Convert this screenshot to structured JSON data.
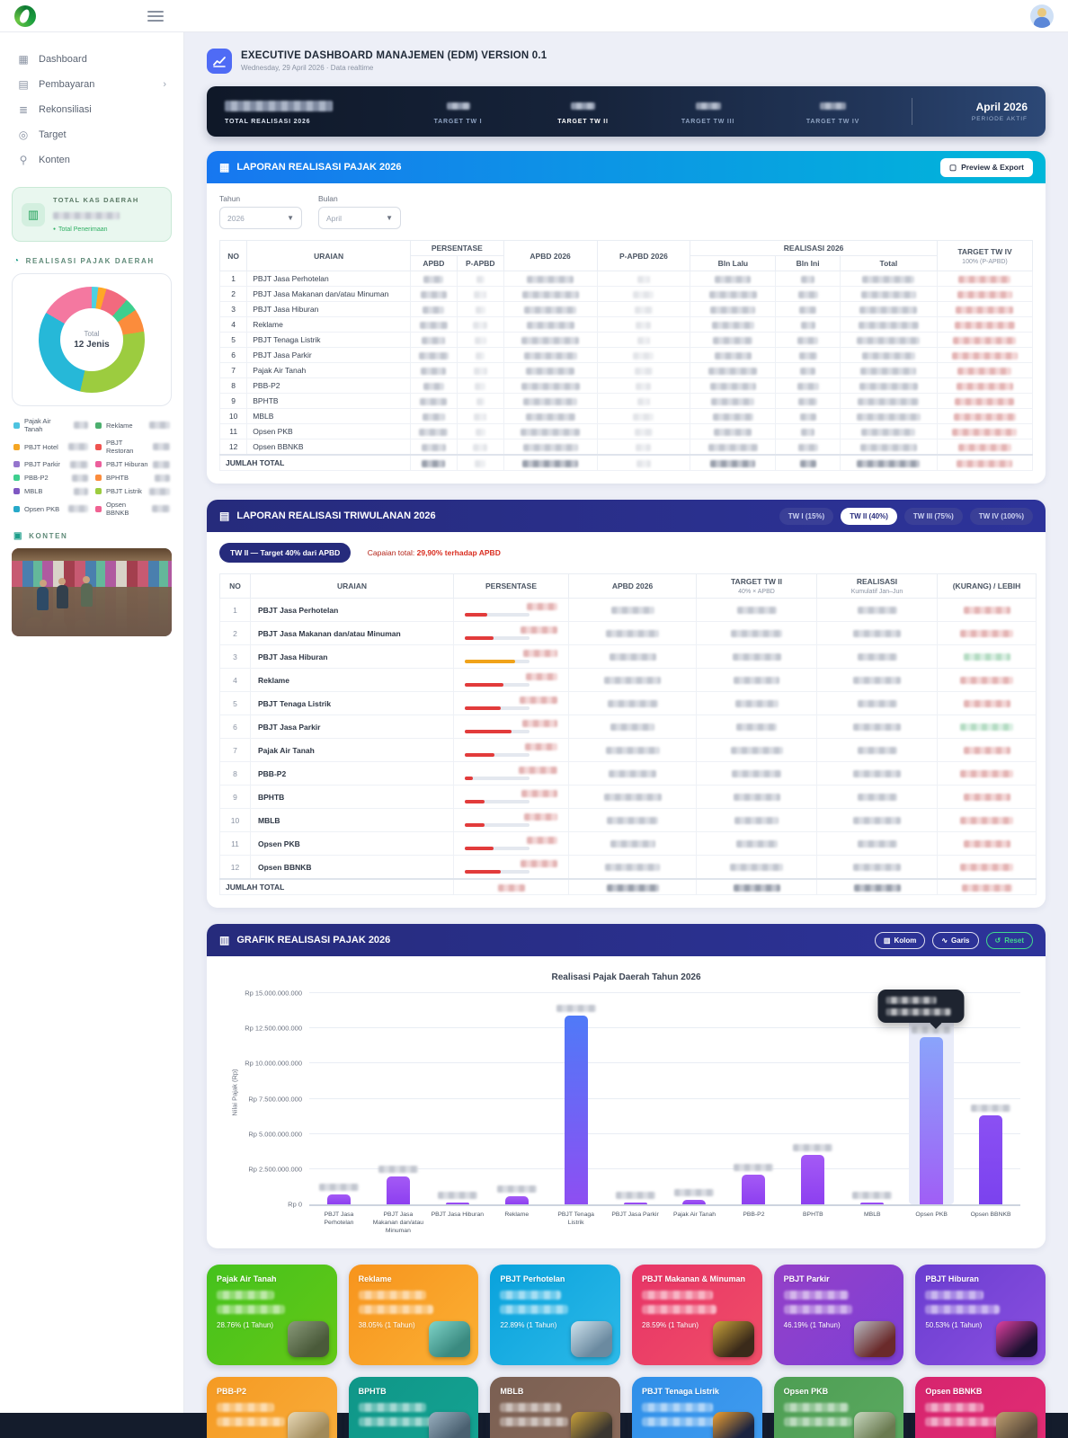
{
  "sidebar": {
    "menu": [
      {
        "id": "dashboard",
        "icon": "grid",
        "label": "Dashboard",
        "chevron": false
      },
      {
        "id": "pembayaran",
        "icon": "doc",
        "label": "Pembayaran",
        "chevron": true
      },
      {
        "id": "rekonsiliasi",
        "icon": "layers",
        "label": "Rekonsiliasi",
        "chevron": false
      },
      {
        "id": "target",
        "icon": "gear",
        "label": "Target",
        "chevron": false
      },
      {
        "id": "konten",
        "icon": "mic",
        "label": "Konten",
        "chevron": false
      }
    ],
    "kas_card": {
      "title": "TOTAL KAS DAERAH",
      "subtitle": "Total Penerimaan"
    },
    "pajak_section_label": "REALISASI PAJAK DAERAH",
    "konten_label": "KONTEN",
    "donut": {
      "center_top": "Total",
      "center_bottom": "12 Jenis",
      "segments": [
        {
          "color": "#4dd0e1",
          "value": 2
        },
        {
          "color": "#ffa726",
          "value": 2.5
        },
        {
          "color": "#f26a7e",
          "value": 7
        },
        {
          "color": "#3ecf8e",
          "value": 4
        },
        {
          "color": "#fb8c3c",
          "value": 7
        },
        {
          "color": "#9ccc3f",
          "value": 31
        },
        {
          "color": "#26b8d8",
          "value": 30
        },
        {
          "color": "#f478a0",
          "value": 16.5
        }
      ],
      "legend": [
        {
          "label": "Pajak Air Tanah",
          "color": "#4dc3e0"
        },
        {
          "label": "Reklame",
          "color": "#4caf6e"
        },
        {
          "label": "PBJT Hotel",
          "color": "#f5a623"
        },
        {
          "label": "PBJT Restoran",
          "color": "#ef5350"
        },
        {
          "label": "PBJT Parkir",
          "color": "#9575cd"
        },
        {
          "label": "PBJT Hiburan",
          "color": "#ec5f9c"
        },
        {
          "label": "PBB-P2",
          "color": "#3ecf8e"
        },
        {
          "label": "BPHTB",
          "color": "#fb8c3c"
        },
        {
          "label": "MBLB",
          "color": "#7e57c2"
        },
        {
          "label": "PBJT Listrik",
          "color": "#9ccc3f"
        },
        {
          "label": "Opsen PKB",
          "color": "#26a9c9"
        },
        {
          "label": "Opsen BBNKB",
          "color": "#f06292"
        }
      ]
    }
  },
  "header": {
    "title": "EXECUTIVE DASHBOARD MANAJEMEN (EDM) VERSION 0.1",
    "date": "Wednesday, 29 April 2026",
    "separator": "·",
    "realtime": "Data realtime"
  },
  "statbar": {
    "total_label": "TOTAL REALISASI 2026",
    "targets": [
      {
        "label": "TARGET TW I",
        "active": false
      },
      {
        "label": "TARGET TW II",
        "active": true
      },
      {
        "label": "TARGET TW III",
        "active": false
      },
      {
        "label": "TARGET TW IV",
        "active": false
      }
    ],
    "period": "April 2026",
    "period_label": "PERIODE AKTIF"
  },
  "laporan_pajak": {
    "title": "LAPORAN REALISASI PAJAK 2026",
    "export_label": "Preview & Export",
    "filters": {
      "tahun_label": "Tahun",
      "tahun_value": "2026",
      "bulan_label": "Bulan",
      "bulan_value": "April"
    },
    "columns": {
      "no": "NO",
      "uraian": "URAIAN",
      "persentase": "PERSENTASE",
      "apbd": "APBD",
      "p_apbd": "P-APBD",
      "apbd2026": "APBD 2026",
      "p_apbd2026": "P-APBD 2026",
      "realisasi": "REALISASI 2026",
      "bln_lalu": "Bln Lalu",
      "bln_ini": "Bln Ini",
      "total": "Total",
      "target": "TARGET TW IV",
      "target_sub": "100% (P-APBD)"
    },
    "rows": [
      "PBJT Jasa Perhotelan",
      "PBJT Jasa Makanan dan/atau Minuman",
      "PBJT Jasa Hiburan",
      "Reklame",
      "PBJT Tenaga Listrik",
      "PBJT Jasa Parkir",
      "Pajak Air Tanah",
      "PBB-P2",
      "BPHTB",
      "MBLB",
      "Opsen PKB",
      "Opsen BBNKB"
    ],
    "total_label": "JUMLAH TOTAL"
  },
  "laporan_triwulanan": {
    "title": "LAPORAN REALISASI TRIWULANAN 2026",
    "tw_buttons": [
      {
        "label": "TW I (15%)",
        "active": false
      },
      {
        "label": "TW II (40%)",
        "active": true
      },
      {
        "label": "TW III (75%)",
        "active": false
      },
      {
        "label": "TW IV (100%)",
        "active": false
      }
    ],
    "badge": "TW II — Target 40% dari APBD",
    "capaian_prefix": "Capaian total:",
    "capaian_value": "29,90% terhadap APBD",
    "columns": {
      "no": "NO",
      "uraian": "URAIAN",
      "persentase": "PERSENTASE",
      "apbd2026": "APBD 2026",
      "target": "TARGET TW II",
      "target_sub": "40% × APBD",
      "realisasi": "REALISASI",
      "realisasi_sub": "Kumulatif Jan–Jun",
      "selisih": "(KURANG) / LEBIH"
    },
    "rows": [
      {
        "name": "PBJT Jasa Perhotelan",
        "progress_pct": 35,
        "bar_color": "#e23b3b",
        "surplus": false
      },
      {
        "name": "PBJT Jasa Makanan dan/atau Minuman",
        "progress_pct": 45,
        "bar_color": "#e23b3b",
        "surplus": false
      },
      {
        "name": "PBJT Jasa Hiburan",
        "progress_pct": 78,
        "bar_color": "#f0a31a",
        "surplus": true
      },
      {
        "name": "Reklame",
        "progress_pct": 60,
        "bar_color": "#e23b3b",
        "surplus": false
      },
      {
        "name": "PBJT Tenaga Listrik",
        "progress_pct": 56,
        "bar_color": "#e23b3b",
        "surplus": false
      },
      {
        "name": "PBJT Jasa Parkir",
        "progress_pct": 72,
        "bar_color": "#e23b3b",
        "surplus": true
      },
      {
        "name": "Pajak Air Tanah",
        "progress_pct": 46,
        "bar_color": "#e23b3b",
        "surplus": false
      },
      {
        "name": "PBB-P2",
        "progress_pct": 12,
        "bar_color": "#e23b3b",
        "surplus": false
      },
      {
        "name": "BPHTB",
        "progress_pct": 30,
        "bar_color": "#e23b3b",
        "surplus": false
      },
      {
        "name": "MBLB",
        "progress_pct": 30,
        "bar_color": "#e23b3b",
        "surplus": false
      },
      {
        "name": "Opsen PKB",
        "progress_pct": 44,
        "bar_color": "#e23b3b",
        "surplus": false
      },
      {
        "name": "Opsen BBNKB",
        "progress_pct": 56,
        "bar_color": "#e23b3b",
        "surplus": false
      }
    ],
    "total_label": "JUMLAH TOTAL"
  },
  "grafik": {
    "title": "GRAFIK REALISASI PAJAK 2026",
    "kolom_label": "Kolom",
    "garis_label": "Garis",
    "reset_label": "Reset"
  },
  "chart_data": {
    "type": "bar",
    "title": "Realisasi Pajak Daerah Tahun 2026",
    "ylabel": "Nilai Pajak (Rp)",
    "categories": [
      "PBJT Jasa Perhotelan",
      "PBJT Jasa Makanan dan/atau Minuman",
      "PBJT Jasa Hiburan",
      "Reklame",
      "PBJT Tenaga Listrik",
      "PBJT Jasa Parkir",
      "Pajak Air Tanah",
      "PBB-P2",
      "BPHTB",
      "MBLB",
      "Opsen PKB",
      "Opsen BBNKB"
    ],
    "values": [
      700000000,
      2000000000,
      150000000,
      550000000,
      13400000000,
      100000000,
      300000000,
      2100000000,
      3500000000,
      100000000,
      11900000000,
      6300000000
    ],
    "ylim": [
      0,
      15000000000
    ],
    "yticks": [
      "Rp 0",
      "Rp 2.500.000.000",
      "Rp 5.000.000.000",
      "Rp 7.500.000.000",
      "Rp 10.000.000.000",
      "Rp 12.500.000.000",
      "Rp 15.000.000.000"
    ],
    "grid": true,
    "highlight_index": 10,
    "bar_gradients": {
      "default": [
        "#a45af5",
        "#8d3ff0"
      ],
      "4": [
        "#4f7af8",
        "#8e4ef2"
      ],
      "10": [
        "#8aa4fb",
        "#a05ef6"
      ],
      "11": [
        "#8b50f3",
        "#7b42ee"
      ]
    }
  },
  "cards_row1": [
    {
      "title": "Pajak Air Tanah",
      "pct": "28.76% (1 Tahun)",
      "g": [
        "#45c21d",
        "#64c816"
      ],
      "thumb": [
        "#8a9a7a",
        "#4a5a3a"
      ]
    },
    {
      "title": "Reklame",
      "pct": "38.05% (1 Tahun)",
      "g": [
        "#f7941d",
        "#fbb034"
      ],
      "thumb": [
        "#7fd4c9",
        "#3a8a80"
      ]
    },
    {
      "title": "PBJT Perhotelan",
      "pct": "22.89% (1 Tahun)",
      "g": [
        "#09a2dc",
        "#2cb9e8"
      ],
      "thumb": [
        "#cfe3ee",
        "#6b8aa0"
      ]
    },
    {
      "title": "PBJT Makanan & Minuman",
      "pct": "28.59% (1 Tahun)",
      "g": [
        "#e73467",
        "#f04e67"
      ],
      "thumb": [
        "#c9a23a",
        "#3a2a1a"
      ]
    },
    {
      "title": "PBJT Parkir",
      "pct": "46.19% (1 Tahun)",
      "g": [
        "#9440c8",
        "#7d3fd6"
      ],
      "thumb": [
        "#b8bcc4",
        "#6a2a2a"
      ]
    },
    {
      "title": "PBJT Hiburan",
      "pct": "50.53% (1 Tahun)",
      "g": [
        "#6a3dd0",
        "#8a4fe0"
      ],
      "thumb": [
        "#e040a0",
        "#1a1030"
      ]
    }
  ],
  "cards_row2": [
    {
      "title": "PBB-P2",
      "g": [
        "#f59a23",
        "#f9ad3a"
      ],
      "thumb": [
        "#e8d9b8",
        "#a08a5a"
      ]
    },
    {
      "title": "BPHTB",
      "g": [
        "#0f9688",
        "#14a392"
      ],
      "thumb": [
        "#9ab0c0",
        "#4a6070"
      ]
    },
    {
      "title": "MBLB",
      "g": [
        "#7a5f52",
        "#8a6a5a"
      ],
      "thumb": [
        "#caa23a",
        "#3a3530"
      ]
    },
    {
      "title": "PBJT Tenaga Listrik",
      "g": [
        "#2f8fe8",
        "#419cf0"
      ],
      "thumb": [
        "#f0a030",
        "#1a2340"
      ]
    },
    {
      "title": "Opsen PKB",
      "g": [
        "#4d9e53",
        "#5caa61"
      ],
      "thumb": [
        "#c8d8c0",
        "#6a7a50"
      ]
    },
    {
      "title": "Opsen BBNKB",
      "g": [
        "#d6246e",
        "#e22d74"
      ],
      "thumb": [
        "#c0a070",
        "#5a4a3a"
      ]
    }
  ]
}
